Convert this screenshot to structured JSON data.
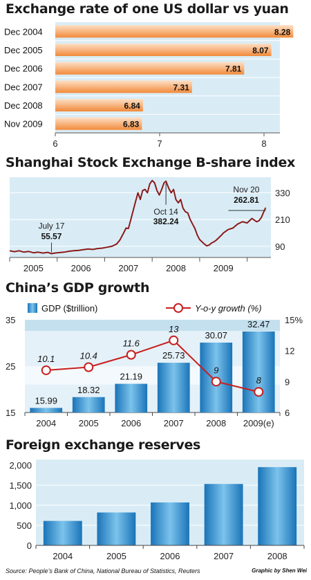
{
  "charts": [
    {
      "title": "Exchange rate of one US dollar vs yuan",
      "type": "bar",
      "categories": [
        "Dec 2004",
        "Dec 2005",
        "Dec 2006",
        "Dec 2007",
        "Dec 2008",
        "Nov 2009"
      ],
      "values": [
        8.28,
        8.07,
        7.81,
        7.31,
        6.84,
        6.83
      ],
      "value_labels": [
        "8.28",
        "8.07",
        "7.81",
        "7.31",
        "6.84",
        "6.83"
      ],
      "xlim": [
        6,
        8.3
      ],
      "ticks": [
        6,
        7,
        8
      ],
      "tick_labels": [
        "6",
        "7",
        "8"
      ],
      "colors": {
        "bar": "#f28a3a",
        "bar_light": "#fde0c6",
        "panel": "#d9ecf5"
      }
    },
    {
      "title": "Shanghai Stock Exchange B-share index",
      "type": "line",
      "x_labels": [
        "2005",
        "2006",
        "2007",
        "2008",
        "2009"
      ],
      "y_ticks": [
        330,
        210,
        90
      ],
      "y_tick_labels": [
        "330",
        "210",
        "90"
      ],
      "ylim": [
        40,
        400
      ],
      "xlim": [
        2004.5,
        2010
      ],
      "series": [
        {
          "values": [
            [
              2004.5,
              70
            ],
            [
              2004.6,
              66
            ],
            [
              2004.7,
              70
            ],
            [
              2004.8,
              64
            ],
            [
              2004.9,
              67
            ],
            [
              2005.0,
              61
            ],
            [
              2005.1,
              64
            ],
            [
              2005.2,
              60
            ],
            [
              2005.3,
              63
            ],
            [
              2005.38,
              57
            ],
            [
              2005.45,
              60
            ],
            [
              2005.55,
              62
            ],
            [
              2005.65,
              64
            ],
            [
              2005.75,
              68
            ],
            [
              2005.85,
              70
            ],
            [
              2005.95,
              72
            ],
            [
              2006.05,
              75
            ],
            [
              2006.15,
              78
            ],
            [
              2006.25,
              76
            ],
            [
              2006.35,
              80
            ],
            [
              2006.45,
              82
            ],
            [
              2006.55,
              86
            ],
            [
              2006.65,
              90
            ],
            [
              2006.75,
              100
            ],
            [
              2006.82,
              118
            ],
            [
              2006.9,
              150
            ],
            [
              2006.95,
              172
            ],
            [
              2007.0,
              170
            ],
            [
              2007.05,
              210
            ],
            [
              2007.1,
              250
            ],
            [
              2007.15,
              290
            ],
            [
              2007.2,
              330
            ],
            [
              2007.25,
              300
            ],
            [
              2007.3,
              340
            ],
            [
              2007.35,
              345
            ],
            [
              2007.4,
              330
            ],
            [
              2007.45,
              370
            ],
            [
              2007.5,
              385
            ],
            [
              2007.55,
              375
            ],
            [
              2007.6,
              340
            ],
            [
              2007.65,
              320
            ],
            [
              2007.7,
              345
            ],
            [
              2007.75,
              375
            ],
            [
              2007.79,
              382
            ],
            [
              2007.85,
              350
            ],
            [
              2007.9,
              330
            ],
            [
              2007.95,
              345
            ],
            [
              2008.0,
              300
            ],
            [
              2008.05,
              285
            ],
            [
              2008.1,
              300
            ],
            [
              2008.15,
              260
            ],
            [
              2008.2,
              245
            ],
            [
              2008.25,
              240
            ],
            [
              2008.3,
              210
            ],
            [
              2008.35,
              190
            ],
            [
              2008.4,
              170
            ],
            [
              2008.45,
              140
            ],
            [
              2008.5,
              120
            ],
            [
              2008.55,
              110
            ],
            [
              2008.6,
              100
            ],
            [
              2008.65,
              92
            ],
            [
              2008.7,
              96
            ],
            [
              2008.75,
              105
            ],
            [
              2008.8,
              110
            ],
            [
              2008.85,
              118
            ],
            [
              2008.9,
              128
            ],
            [
              2008.95,
              138
            ],
            [
              2009.0,
              150
            ],
            [
              2009.1,
              165
            ],
            [
              2009.2,
              172
            ],
            [
              2009.3,
              190
            ],
            [
              2009.4,
              200
            ],
            [
              2009.5,
              195
            ],
            [
              2009.6,
              215
            ],
            [
              2009.7,
              200
            ],
            [
              2009.75,
              205
            ],
            [
              2009.8,
              220
            ],
            [
              2009.85,
              245
            ],
            [
              2009.89,
              263
            ]
          ]
        }
      ],
      "annotations": [
        {
          "date": "July 17",
          "value": "55.57",
          "x": 2005.38,
          "y": 57
        },
        {
          "date": "Oct 14",
          "value": "382.24",
          "x": 2007.79,
          "y": 382
        },
        {
          "date": "Nov 20",
          "value": "262.81",
          "x": 2009.89,
          "y": 263
        }
      ],
      "colors": {
        "line": "#8b1a1a",
        "panel": "#d9ecf5"
      }
    },
    {
      "title": "China’s GDP growth",
      "type": "bar+line",
      "categories": [
        "2004",
        "2005",
        "2006",
        "2007",
        "2008",
        "2009(e)"
      ],
      "series": [
        {
          "name": "GDP ($trillion)",
          "values": [
            15.99,
            18.32,
            21.19,
            25.73,
            30.07,
            32.47
          ],
          "labels": [
            "15.99",
            "18.32",
            "21.19",
            "25.73",
            "30.07",
            "32.47"
          ]
        },
        {
          "name": "Y-o-y growth (%)",
          "values": [
            10.1,
            10.4,
            11.6,
            13,
            9,
            8
          ],
          "labels": [
            "10.1",
            "10.4",
            "11.6",
            "13",
            "9",
            "8"
          ]
        }
      ],
      "left_axis": {
        "ylim": [
          15,
          35
        ],
        "ticks": [
          15,
          25,
          35
        ],
        "tick_labels": [
          "15",
          "25",
          "35"
        ]
      },
      "right_axis": {
        "ylim": [
          6,
          15
        ],
        "ticks": [
          6,
          9,
          12,
          15
        ],
        "tick_labels": [
          "6",
          "9",
          "12",
          "15%"
        ]
      },
      "colors": {
        "bar": "#3a9ad6",
        "line": "#c81e1e",
        "band_dark": "#c4e0ef",
        "band_light": "#e4f1f8"
      }
    },
    {
      "title": "Foreign exchange reserves",
      "type": "bar",
      "categories": [
        "2004",
        "2005",
        "2006",
        "2007",
        "2008"
      ],
      "values": [
        610,
        820,
        1070,
        1530,
        1950
      ],
      "ylim": [
        0,
        2000
      ],
      "y_ticks": [
        0,
        500,
        1000,
        1500,
        2000
      ],
      "y_tick_labels": [
        "0",
        "500",
        "1,000",
        "1,500",
        "2,000"
      ],
      "colors": {
        "bar": "#3a9ad6",
        "panel": "#d9ecf5"
      }
    }
  ],
  "footer": {
    "source": "Source: People’s Bank of China, National Bureau of Statistics, Reuters",
    "credit": "Graphic by Shen Wei"
  }
}
